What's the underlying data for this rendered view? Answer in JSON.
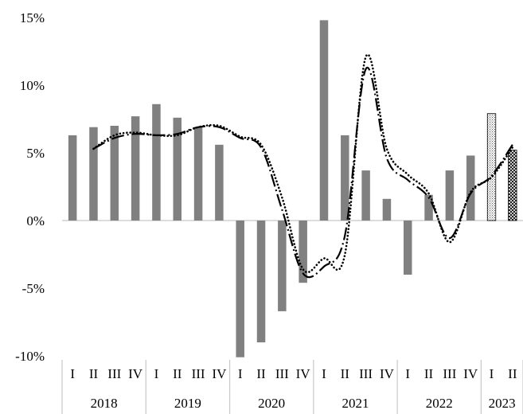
{
  "chart_data": {
    "type": "bar",
    "y_axis": {
      "ylim": [
        -10,
        15
      ],
      "ticks": [
        15,
        10,
        5,
        0,
        -5,
        -10
      ],
      "tick_labels": [
        "15%",
        "10%",
        "5%",
        "0%",
        "-5%",
        "-10%"
      ],
      "unit": "%"
    },
    "quarters": [
      "I",
      "II",
      "III",
      "IV",
      "I",
      "II",
      "III",
      "IV",
      "I",
      "II",
      "III",
      "IV",
      "I",
      "II",
      "III",
      "IV",
      "I",
      "II",
      "III",
      "IV",
      "I",
      "II"
    ],
    "years": [
      {
        "label": "2018",
        "count": 4
      },
      {
        "label": "2019",
        "count": 4
      },
      {
        "label": "2020",
        "count": 4
      },
      {
        "label": "2021",
        "count": 4
      },
      {
        "label": "2022",
        "count": 4
      },
      {
        "label": "2023",
        "count": 2
      }
    ],
    "series": [
      {
        "type": "bar",
        "values": [
          6.3,
          6.9,
          7.0,
          7.7,
          8.6,
          7.6,
          6.9,
          5.6,
          -10.1,
          -9.0,
          -6.7,
          -4.6,
          14.8,
          6.3,
          3.7,
          1.6,
          -4.0,
          1.9,
          3.7,
          4.8,
          7.9,
          5.2
        ],
        "hatched_from_index": 20,
        "color": "#808080"
      },
      {
        "type": "line",
        "style": "dotted",
        "x_index": [
          1,
          2,
          3,
          4,
          5,
          6,
          7,
          8,
          9,
          10,
          11,
          12,
          13,
          14,
          15,
          16,
          17,
          18,
          19,
          20,
          21
        ],
        "values": [
          5.3,
          6.3,
          6.5,
          6.3,
          6.3,
          6.9,
          7.0,
          6.2,
          5.6,
          1.7,
          -3.6,
          -2.8,
          -2.5,
          12.1,
          5.3,
          3.4,
          2.0,
          -1.6,
          2.1,
          3.2,
          5.4
        ],
        "color": "#000000"
      },
      {
        "type": "line",
        "style": "dash-dot",
        "x_index": [
          1,
          2,
          3,
          4,
          5,
          6,
          7,
          8,
          9,
          10,
          11,
          12,
          13,
          14,
          15,
          16,
          17,
          18,
          19,
          20,
          21
        ],
        "values": [
          5.3,
          6.1,
          6.4,
          6.3,
          6.4,
          6.9,
          6.9,
          6.1,
          5.4,
          0.8,
          -3.9,
          -3.4,
          -1.1,
          11.2,
          4.6,
          3.0,
          1.7,
          -1.3,
          2.0,
          3.3,
          5.6
        ],
        "color": "#000000"
      }
    ]
  }
}
